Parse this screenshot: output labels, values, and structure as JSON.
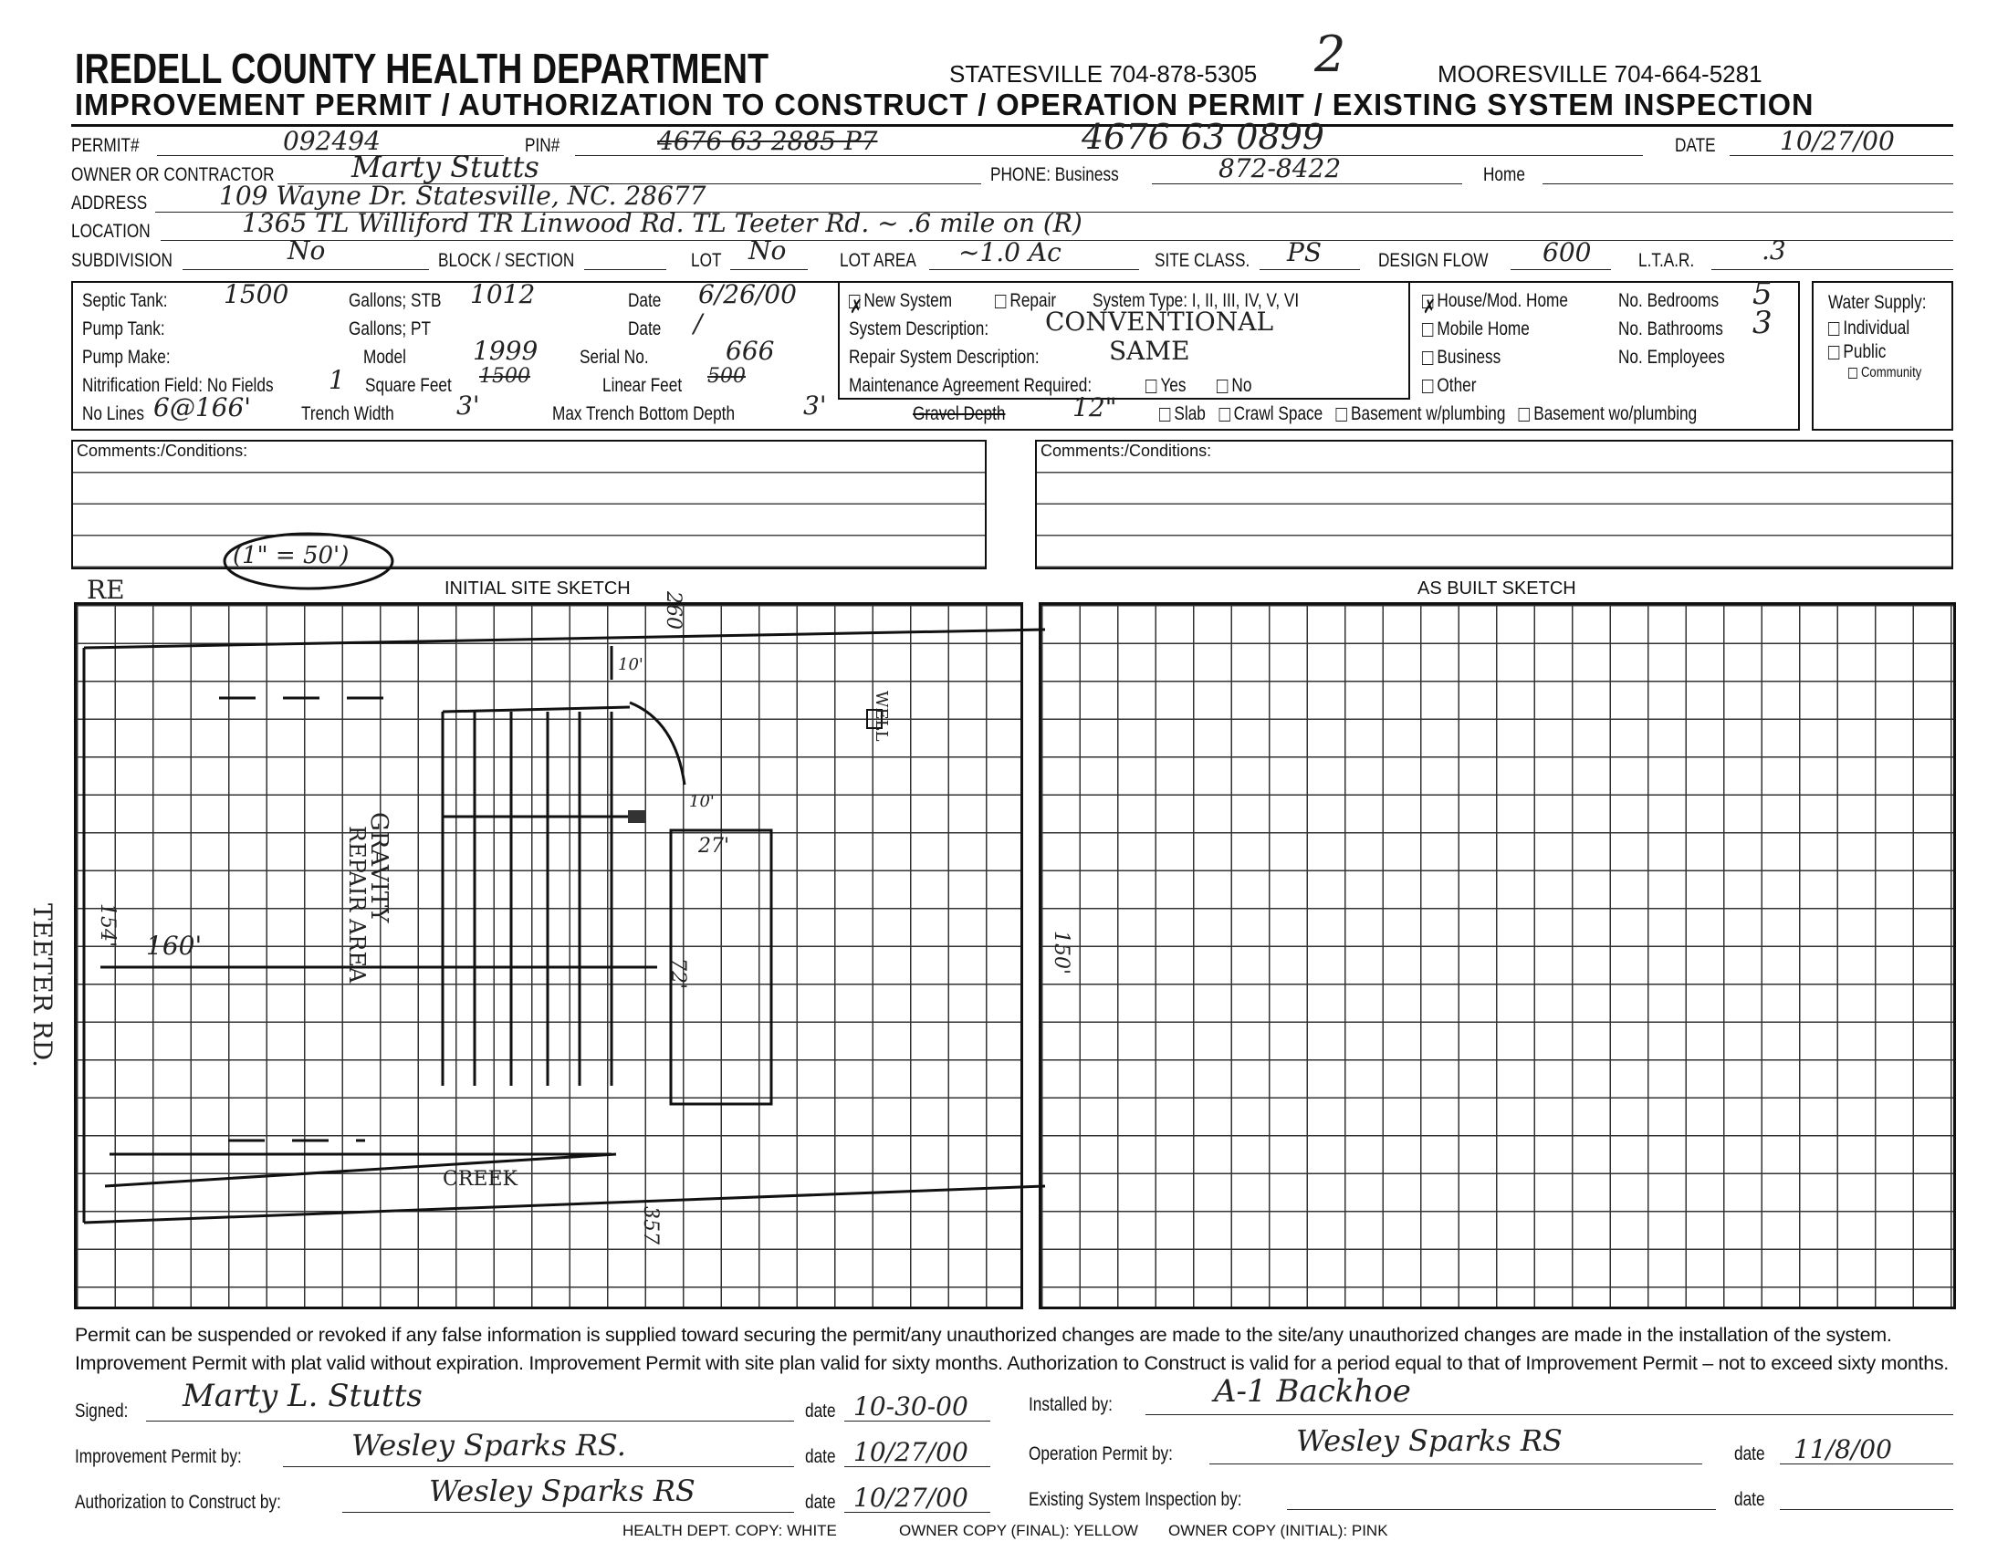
{
  "header": {
    "title": "IREDELL COUNTY HEALTH DEPARTMENT",
    "statesville": "STATESVILLE 704-878-5305",
    "mooresville": "MOORESVILLE 704-664-5281",
    "subtitle": "IMPROVEMENT PERMIT / AUTHORIZATION TO CONSTRUCT / OPERATION PERMIT / EXISTING SYSTEM INSPECTION",
    "copy_number": "2"
  },
  "fields": {
    "permit_label": "PERMIT#",
    "permit": "092494",
    "pin_label": "PIN#",
    "pin_struck": "4676 63 2885 P7",
    "pin": "4676 63 0899",
    "date_label": "DATE",
    "date": "10/27/00",
    "owner_label": "OWNER OR CONTRACTOR",
    "owner": "Marty Stutts",
    "phone_label": "PHONE: Business",
    "phone": "872-8422",
    "home_label": "Home",
    "address_label": "ADDRESS",
    "address": "109 Wayne Dr.  Statesville, NC. 28677",
    "location_label": "LOCATION",
    "location": "1365 TL Williford TR Linwood Rd. TL Teeter Rd. ~ .6 mile on (R)",
    "subdivision_label": "SUBDIVISION",
    "subdivision": "No",
    "block_label": "BLOCK / SECTION",
    "lot_label": "LOT",
    "lot": "No",
    "lot_area_label": "LOT AREA",
    "lot_area": "~1.0 Ac",
    "site_class_label": "SITE CLASS.",
    "site_class": "PS",
    "design_flow_label": "DESIGN FLOW",
    "design_flow": "600",
    "ltar_label": "L.T.A.R.",
    "ltar": ".3"
  },
  "system": {
    "septic_label": "Septic Tank:",
    "septic": "1500",
    "gallons_stb": "Gallons;  STB",
    "stb": "1012",
    "date_label": "Date",
    "septic_date": "6/26/00",
    "pump_label": "Pump Tank:",
    "gallons_pt": "Gallons;  PT",
    "pump_date": "/",
    "pump_make_label": "Pump Make:",
    "model_label": "Model",
    "model": "1999",
    "serial_label": "Serial No.",
    "serial": "666",
    "nitrification_label": "Nitrification Field: No Fields",
    "no_fields": "1",
    "sqft_label": "Square Feet",
    "sqft": "1500",
    "linear_label": "Linear Feet",
    "linear": "500",
    "no_lines_label": "No Lines",
    "no_lines": "6@166'",
    "trench_width_label": "Trench Width",
    "trench_width": "3'",
    "max_depth_label": "Max Trench Bottom Depth",
    "max_depth": "3'",
    "gravel_label": "Gravel Depth",
    "gravel": "12\"",
    "new_system": "New System",
    "repair": "Repair",
    "system_type": "System Type: I, II, III, IV, V, VI",
    "system_desc_label": "System Description:",
    "system_desc": "CONVENTIONAL",
    "repair_desc_label": "Repair System Description:",
    "repair_desc": "SAME",
    "maintenance_label": "Maintenance Agreement Required:",
    "yes": "Yes",
    "no": "No",
    "slab": "Slab",
    "crawl": "Crawl Space",
    "bsmt_w": "Basement w/plumbing",
    "bsmt_wo": "Basement wo/plumbing"
  },
  "building": {
    "house": "House/Mod. Home",
    "mobile": "Mobile Home",
    "business": "Business",
    "other": "Other",
    "bedrooms_label": "No. Bedrooms",
    "bedrooms": "5",
    "bathrooms_label": "No. Bathrooms",
    "bathrooms": "3",
    "employees_label": "No. Employees"
  },
  "water": {
    "label": "Water Supply:",
    "individual": "Individual",
    "public": "Public",
    "community": "Community"
  },
  "comments": {
    "label": "Comments:/Conditions:"
  },
  "sketch": {
    "initial_title": "INITIAL SITE SKETCH",
    "asbuilt_title": "AS BUILT SKETCH",
    "scale": "(1\" = 50')",
    "re": "RE",
    "teeter": "TEETER RD.",
    "gravity": "GRAVITY",
    "repair_area": "REPAIR AREA",
    "well": "WELL",
    "d160": "160'",
    "d154": "154'",
    "d72": "72'",
    "d27": "27'",
    "d10": "10'",
    "d10b": "10'",
    "d260": "260",
    "d357": "357",
    "d150": "150'",
    "creek": "CREEK"
  },
  "footer": {
    "notice": "Permit can be suspended or revoked if any false information is supplied toward securing the permit/any unauthorized changes are made to the site/any unauthorized changes are made in the installation of the system. Improvement Permit with plat valid without expiration. Improvement Permit with site plan valid for sixty months. Authorization to Construct is valid for a period equal to that of Improvement Permit – not to exceed sixty months.",
    "signed_label": "Signed:",
    "signed": "Marty L. Stutts",
    "signed_date": "10-30-00",
    "installed_label": "Installed by:",
    "installed": "A-1 Backhoe",
    "improvement_label": "Improvement Permit by:",
    "improvement": "Wesley Sparks RS.",
    "improvement_date": "10/27/00",
    "operation_label": "Operation Permit by:",
    "operation": "Wesley Sparks RS",
    "operation_date": "11/8/00",
    "authorization_label": "Authorization to Construct by:",
    "authorization": "Wesley Sparks RS",
    "authorization_date": "10/27/00",
    "existing_label": "Existing System Inspection by:",
    "date_label": "date",
    "copy_white": "HEALTH DEPT. COPY: WHITE",
    "copy_yellow": "OWNER COPY (FINAL): YELLOW",
    "copy_pink": "OWNER COPY (INITIAL): PINK"
  }
}
